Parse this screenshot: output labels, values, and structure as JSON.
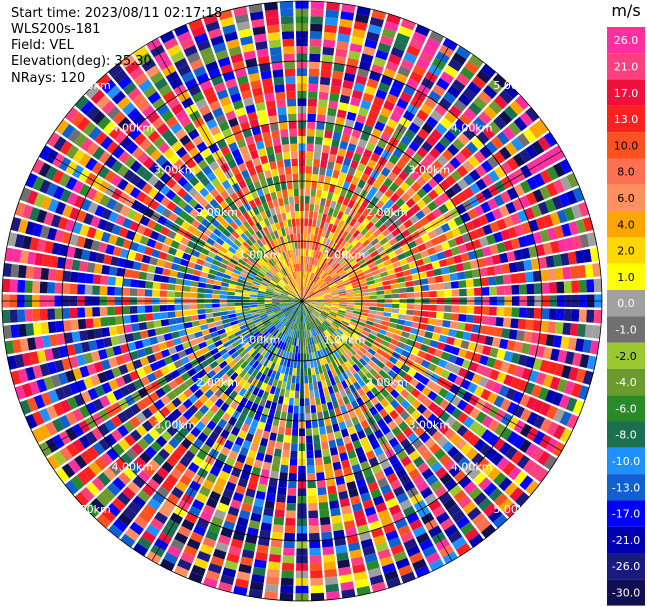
{
  "header": {
    "start_time": "Start time: 2023/08/11 02:17:18",
    "instrument": "WLS200s-181",
    "field": "Field: VEL",
    "elevation": "Elevation(deg): 35.30",
    "nrays": "NRays: 120"
  },
  "colorbar": {
    "unit": "m/s",
    "ticks": [
      "26.0",
      "21.0",
      "17.0",
      "13.0",
      "10.0",
      "8.0",
      "6.0",
      "4.0",
      "2.0",
      "1.0",
      "0.0",
      "-1.0",
      "-2.0",
      "-4.0",
      "-6.0",
      "-8.0",
      "-10.0",
      "-13.0",
      "-17.0",
      "-21.0",
      "-26.0",
      "-30.0"
    ],
    "colors": [
      "#ff2fa0",
      "#ff3f7f",
      "#f0103c",
      "#ff2020",
      "#ff5020",
      "#ff7050",
      "#ff9060",
      "#ffa500",
      "#ffd700",
      "#ffff00",
      "#a0a0a0",
      "#707070",
      "#9ac830",
      "#6a9a30",
      "#2a8a2a",
      "#1a7050",
      "#1e90ff",
      "#1060d0",
      "#0000ff",
      "#0000b0",
      "#1a1a80",
      "#101050"
    ]
  },
  "chart_data": {
    "type": "heatmap",
    "projection": "polar PPI",
    "field": "VEL",
    "nrays": 120,
    "range_rings_km": [
      1.0,
      2.0,
      3.0,
      4.0,
      5.0
    ],
    "range_labels": [
      "1.00km",
      "2.00km",
      "3.00km",
      "4.00km",
      "5.00km"
    ],
    "value_min": -30.0,
    "value_max": 26.0
  }
}
